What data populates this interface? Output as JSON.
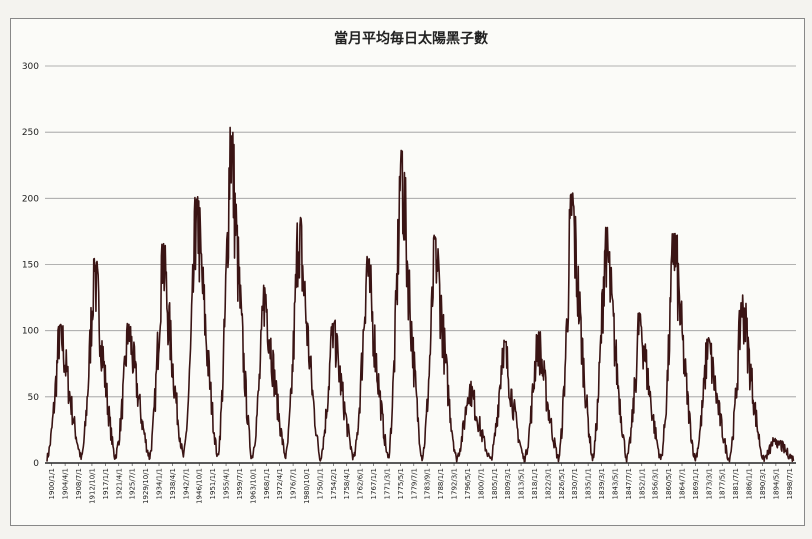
{
  "chart_data": {
    "type": "line",
    "title": "當月平均毎日太陽黑子數",
    "xlabel": "",
    "ylabel": "",
    "ylim": [
      0,
      300
    ],
    "y_ticks": [
      0,
      50,
      100,
      150,
      200,
      250,
      300
    ],
    "grid": true,
    "line_color": "#3a1414",
    "x_tick_labels": [
      "1900/1/1",
      "1904/4/1",
      "1908/7/1",
      "1912/10/1",
      "1917/1/1",
      "1921/4/1",
      "1925/7/1",
      "1929/10/1",
      "1934/1/1",
      "1938/4/1",
      "1942/7/1",
      "1946/10/1",
      "1951/1/1",
      "1955/4/1",
      "1959/7/1",
      "1963/10/1",
      "1968/1/1",
      "1972/4/1",
      "1976/7/1",
      "1980/10/1",
      "1750/1/1",
      "1754/2/1",
      "1758/4/1",
      "1762/6/1",
      "1767/1/1",
      "1771/3/1",
      "1775/5/1",
      "1779/7/1",
      "1783/9/1",
      "1788/1/1",
      "1792/3/1",
      "1796/5/1",
      "1800/7/1",
      "1805/1/1",
      "1809/3/1",
      "1813/5/1",
      "1818/1/1",
      "1822/3/1",
      "1826/5/1",
      "1830/7/1",
      "1835/1/1",
      "1839/3/1",
      "1843/5/1",
      "1847/7/1",
      "1852/1/1",
      "1856/3/1",
      "1860/5/1",
      "1864/7/1",
      "1869/1/1",
      "1873/3/1",
      "1877/5/1",
      "1881/7/1",
      "1886/1/1",
      "1890/3/1",
      "1894/5/1",
      "1898/7/1"
    ],
    "cycles": [
      {
        "min": 4,
        "peak": 107
      },
      {
        "min": 3,
        "peak": 155
      },
      {
        "min": 5,
        "peak": 107
      },
      {
        "min": 4,
        "peak": 166
      },
      {
        "min": 5,
        "peak": 202
      },
      {
        "min": 4,
        "peak": 254
      },
      {
        "min": 4,
        "peak": 135
      },
      {
        "min": 5,
        "peak": 188
      },
      {
        "min": 3,
        "peak": 108
      },
      {
        "min": 4,
        "peak": 158
      },
      {
        "min": 3,
        "peak": 238
      },
      {
        "min": 4,
        "peak": 173
      },
      {
        "min": 3,
        "peak": 62
      },
      {
        "min": 2,
        "peak": 95
      },
      {
        "min": 3,
        "peak": 100
      },
      {
        "min": 3,
        "peak": 206
      },
      {
        "min": 3,
        "peak": 180
      },
      {
        "min": 3,
        "peak": 115
      },
      {
        "min": 3,
        "peak": 176
      },
      {
        "min": 3,
        "peak": 95
      },
      {
        "min": 3,
        "peak": 130
      },
      {
        "min": 3,
        "peak": 20
      }
    ]
  }
}
